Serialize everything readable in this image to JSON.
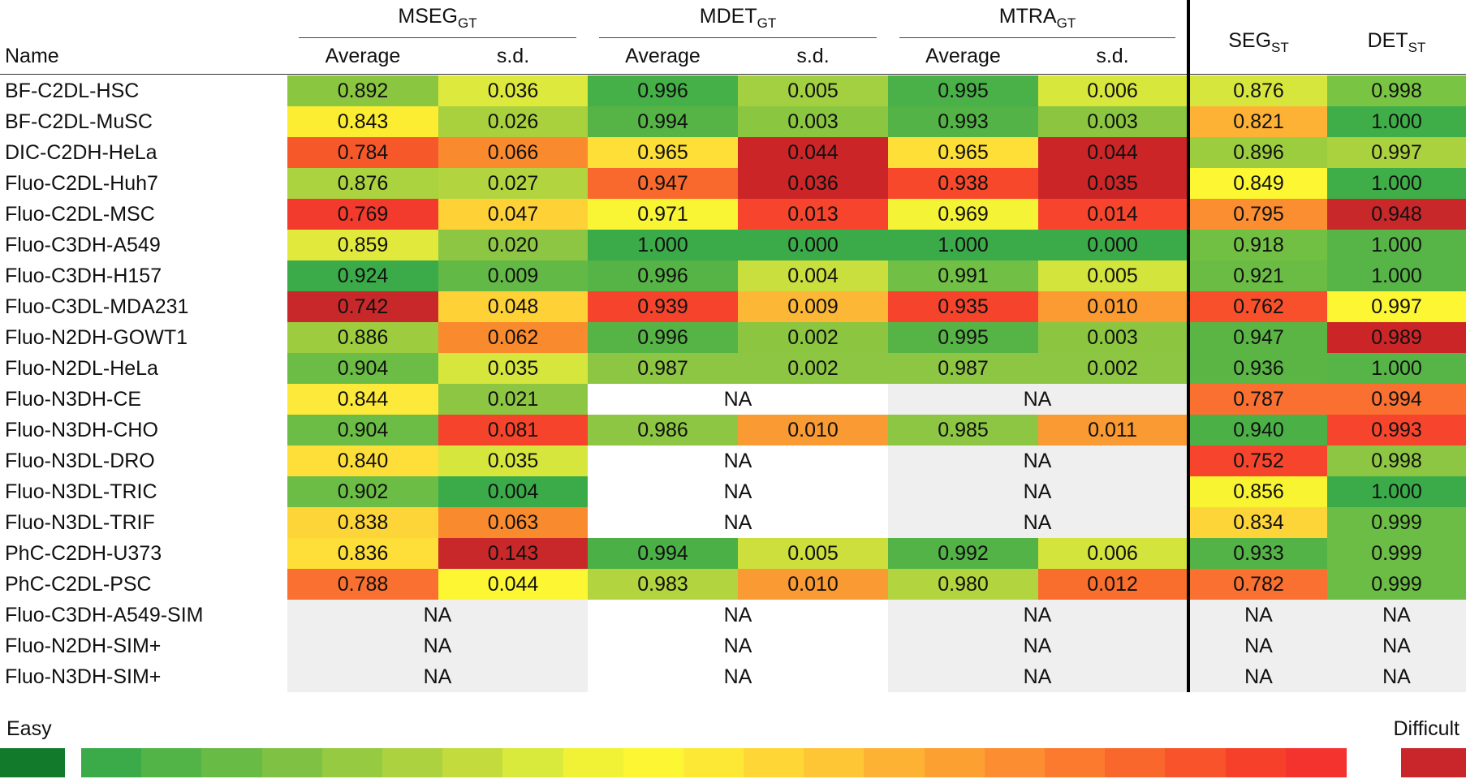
{
  "chart_data": {
    "type": "heatmap",
    "row_header": "Name",
    "groups": [
      {
        "name": "MSEG",
        "sub": "GT",
        "columns": [
          "Average",
          "s.d."
        ]
      },
      {
        "name": "MDET",
        "sub": "GT",
        "columns": [
          "Average",
          "s.d."
        ]
      },
      {
        "name": "MTRA",
        "sub": "GT",
        "columns": [
          "Average",
          "s.d."
        ]
      }
    ],
    "extra_columns": [
      {
        "name": "SEG",
        "sub": "ST"
      },
      {
        "name": "DET",
        "sub": "ST"
      }
    ],
    "rows": [
      {
        "name": "BF-C2DL-HSC",
        "values": [
          "0.892",
          "0.036",
          "0.996",
          "0.005",
          "0.995",
          "0.006",
          "0.876",
          "0.998"
        ]
      },
      {
        "name": "BF-C2DL-MuSC",
        "values": [
          "0.843",
          "0.026",
          "0.994",
          "0.003",
          "0.993",
          "0.003",
          "0.821",
          "1.000"
        ]
      },
      {
        "name": "DIC-C2DH-HeLa",
        "values": [
          "0.784",
          "0.066",
          "0.965",
          "0.044",
          "0.965",
          "0.044",
          "0.896",
          "0.997"
        ]
      },
      {
        "name": "Fluo-C2DL-Huh7",
        "values": [
          "0.876",
          "0.027",
          "0.947",
          "0.036",
          "0.938",
          "0.035",
          "0.849",
          "1.000"
        ]
      },
      {
        "name": "Fluo-C2DL-MSC",
        "values": [
          "0.769",
          "0.047",
          "0.971",
          "0.013",
          "0.969",
          "0.014",
          "0.795",
          "0.948"
        ]
      },
      {
        "name": "Fluo-C3DH-A549",
        "values": [
          "0.859",
          "0.020",
          "1.000",
          "0.000",
          "1.000",
          "0.000",
          "0.918",
          "1.000"
        ]
      },
      {
        "name": "Fluo-C3DH-H157",
        "values": [
          "0.924",
          "0.009",
          "0.996",
          "0.004",
          "0.991",
          "0.005",
          "0.921",
          "1.000"
        ]
      },
      {
        "name": "Fluo-C3DL-MDA231",
        "values": [
          "0.742",
          "0.048",
          "0.939",
          "0.009",
          "0.935",
          "0.010",
          "0.762",
          "0.997"
        ]
      },
      {
        "name": "Fluo-N2DH-GOWT1",
        "values": [
          "0.886",
          "0.062",
          "0.996",
          "0.002",
          "0.995",
          "0.003",
          "0.947",
          "0.989"
        ]
      },
      {
        "name": "Fluo-N2DL-HeLa",
        "values": [
          "0.904",
          "0.035",
          "0.987",
          "0.002",
          "0.987",
          "0.002",
          "0.936",
          "1.000"
        ]
      },
      {
        "name": "Fluo-N3DH-CE",
        "values": [
          "0.844",
          "0.021",
          null,
          null,
          null,
          null,
          "0.787",
          "0.994"
        ]
      },
      {
        "name": "Fluo-N3DH-CHO",
        "values": [
          "0.904",
          "0.081",
          "0.986",
          "0.010",
          "0.985",
          "0.011",
          "0.940",
          "0.993"
        ]
      },
      {
        "name": "Fluo-N3DL-DRO",
        "values": [
          "0.840",
          "0.035",
          null,
          null,
          null,
          null,
          "0.752",
          "0.998"
        ]
      },
      {
        "name": "Fluo-N3DL-TRIC",
        "values": [
          "0.902",
          "0.004",
          null,
          null,
          null,
          null,
          "0.856",
          "1.000"
        ]
      },
      {
        "name": "Fluo-N3DL-TRIF",
        "values": [
          "0.838",
          "0.063",
          null,
          null,
          null,
          null,
          "0.834",
          "0.999"
        ]
      },
      {
        "name": "PhC-C2DH-U373",
        "values": [
          "0.836",
          "0.143",
          "0.994",
          "0.005",
          "0.992",
          "0.006",
          "0.933",
          "0.999"
        ]
      },
      {
        "name": "PhC-C2DL-PSC",
        "values": [
          "0.788",
          "0.044",
          "0.983",
          "0.010",
          "0.980",
          "0.012",
          "0.782",
          "0.999"
        ]
      },
      {
        "name": "Fluo-C3DH-A549-SIM",
        "values": [
          null,
          null,
          null,
          null,
          null,
          null,
          null,
          null
        ]
      },
      {
        "name": "Fluo-N2DH-SIM+",
        "values": [
          null,
          null,
          null,
          null,
          null,
          null,
          null,
          null
        ]
      },
      {
        "name": "Fluo-N3DH-SIM+",
        "values": [
          null,
          null,
          null,
          null,
          null,
          null,
          null,
          null
        ]
      }
    ],
    "colors": [
      [
        "#8ac640",
        "#ddea3d",
        "#44b047",
        "#a2d040",
        "#49b147",
        "#d8e73c",
        "#d6e63d",
        "#7ac443"
      ],
      [
        "#fced33",
        "#a9d13e",
        "#56b446",
        "#8bc640",
        "#53b346",
        "#8cc640",
        "#fdb135",
        "#3fae48"
      ],
      [
        "#f7582a",
        "#fa8a2e",
        "#fedf37",
        "#cc2527",
        "#fedf37",
        "#cc2527",
        "#9ccd3f",
        "#aad23f"
      ],
      [
        "#abd23f",
        "#b2d53f",
        "#f9682c",
        "#cc2527",
        "#f7482b",
        "#cc2527",
        "#fdf733",
        "#3fae48"
      ],
      [
        "#f23a2d",
        "#fed236",
        "#f9f434",
        "#f6452c",
        "#f5f335",
        "#f6452c",
        "#fb8e30",
        "#c8282a"
      ],
      [
        "#e1ea3c",
        "#8dc642",
        "#3aab48",
        "#3aab48",
        "#3aab48",
        "#3aab48",
        "#72c043",
        "#57b547"
      ],
      [
        "#3aab48",
        "#63b946",
        "#56b446",
        "#c8df3d",
        "#71bf45",
        "#d3e43c",
        "#6abc45",
        "#57b547"
      ],
      [
        "#c8282a",
        "#fed236",
        "#f6442c",
        "#fdb736",
        "#f6442c",
        "#fc9b32",
        "#f7502a",
        "#fdf733"
      ],
      [
        "#9dcd3f",
        "#fa8a2e",
        "#56b446",
        "#8cc640",
        "#56b446",
        "#8cc640",
        "#5ab545",
        "#cc2527"
      ],
      [
        "#6bbd45",
        "#d7e63d",
        "#8dc642",
        "#8dc642",
        "#8dc642",
        "#8dc642",
        "#5ab545",
        "#57b547"
      ],
      [
        "#fde93a",
        "#8dc642",
        "#ffffff",
        "#ffffff",
        "#efefef",
        "#efefef",
        "#f97030",
        "#f97030"
      ],
      [
        "#6bbd45",
        "#f6442c",
        "#8dc642",
        "#fa9a32",
        "#8dc642",
        "#fa9a32",
        "#4bb147",
        "#f6452c"
      ],
      [
        "#fede38",
        "#d7e63d",
        "#ffffff",
        "#ffffff",
        "#efefef",
        "#efefef",
        "#f6452c",
        "#8dc642"
      ],
      [
        "#6bbd45",
        "#3aab48",
        "#ffffff",
        "#ffffff",
        "#efefef",
        "#efefef",
        "#f8f432",
        "#3aab48"
      ],
      [
        "#fdd538",
        "#fa8a2e",
        "#ffffff",
        "#ffffff",
        "#efefef",
        "#efefef",
        "#fdd538",
        "#6bbd45"
      ],
      [
        "#fede38",
        "#c8282a",
        "#4bb147",
        "#ccdf3d",
        "#53b346",
        "#d3e43c",
        "#53b346",
        "#6bbd45"
      ],
      [
        "#f97030",
        "#fdf733",
        "#b2d53f",
        "#fa9a32",
        "#b2d53f",
        "#f96d2d",
        "#f97030",
        "#6bbd45"
      ],
      [
        "#efefef",
        "#efefef",
        "#ffffff",
        "#ffffff",
        "#efefef",
        "#efefef",
        "#efefef",
        "#efefef"
      ],
      [
        "#efefef",
        "#efefef",
        "#ffffff",
        "#ffffff",
        "#efefef",
        "#efefef",
        "#efefef",
        "#efefef"
      ],
      [
        "#efefef",
        "#efefef",
        "#ffffff",
        "#ffffff",
        "#efefef",
        "#efefef",
        "#efefef",
        "#efefef"
      ]
    ],
    "na_label": "NA",
    "legend": {
      "low_label": "Easy",
      "high_label": "Difficult",
      "easy_color": "#117a2b",
      "difficult_color": "#c8262a",
      "scale": [
        "#3aab48",
        "#52b446",
        "#68bb45",
        "#7fc243",
        "#95ca41",
        "#acd23f",
        "#c3db3d",
        "#daea3c",
        "#f1f236",
        "#fdf733",
        "#fde935",
        "#fed736",
        "#fec535",
        "#feb234",
        "#fda032",
        "#fc8d30",
        "#fb7a2e",
        "#f9672c",
        "#f8532b",
        "#f6402a",
        "#f5332e"
      ]
    }
  }
}
